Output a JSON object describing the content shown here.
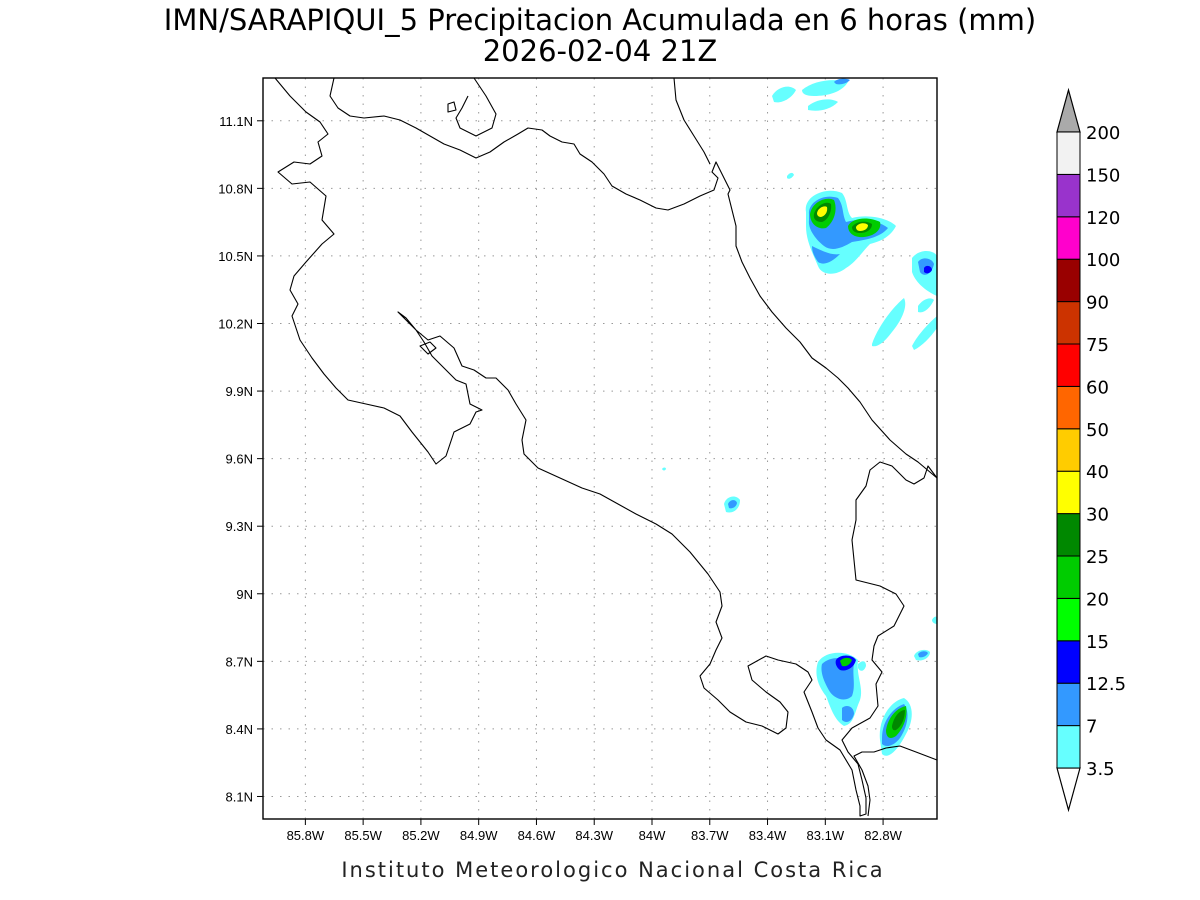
{
  "title": {
    "line1": "IMN/SARAPIQUI_5 Precipitacion Acumulada en 6 horas (mm)",
    "line2": "2026-02-04 21Z"
  },
  "footer": "Instituto Meteorologico Nacional Costa Rica",
  "map": {
    "lon_range": [
      -86.02,
      -82.52
    ],
    "lat_range": [
      8.0,
      11.29
    ],
    "x_ticks": [
      "85.8W",
      "85.5W",
      "85.2W",
      "84.9W",
      "84.6W",
      "84.3W",
      "84W",
      "83.7W",
      "83.4W",
      "83.1W",
      "82.8W"
    ],
    "x_tick_values": [
      -85.8,
      -85.5,
      -85.2,
      -84.9,
      -84.6,
      -84.3,
      -84.0,
      -83.7,
      -83.4,
      -83.1,
      -82.8
    ],
    "y_ticks": [
      "8.1N",
      "8.4N",
      "8.7N",
      "9N",
      "9.3N",
      "9.6N",
      "9.9N",
      "10.2N",
      "10.5N",
      "10.8N",
      "11.1N"
    ],
    "y_tick_values": [
      8.1,
      8.4,
      8.7,
      9.0,
      9.3,
      9.6,
      9.9,
      10.2,
      10.5,
      10.8,
      11.1
    ],
    "grid": true
  },
  "colorbar": {
    "levels": [
      "3.5",
      "7",
      "12.5",
      "15",
      "20",
      "25",
      "30",
      "40",
      "50",
      "60",
      "75",
      "90",
      "100",
      "120",
      "150",
      "200"
    ],
    "colors": [
      "#66ffff",
      "#3399ff",
      "#0000ff",
      "#00ff00",
      "#00cc00",
      "#008800",
      "#ffff00",
      "#ffcc00",
      "#ff6600",
      "#ff0000",
      "#cc3300",
      "#990000",
      "#ff00cc",
      "#9933cc",
      "#f2f2f2"
    ],
    "below_color": "#ffffff",
    "above_color": "#aaaaaa"
  },
  "colors": {
    "light_cyan": "#66ffff",
    "med_blue": "#3399ff",
    "dark_blue": "#0000ff",
    "green": "#00cc00",
    "dark_green": "#008800",
    "yellow": "#ffff00"
  }
}
